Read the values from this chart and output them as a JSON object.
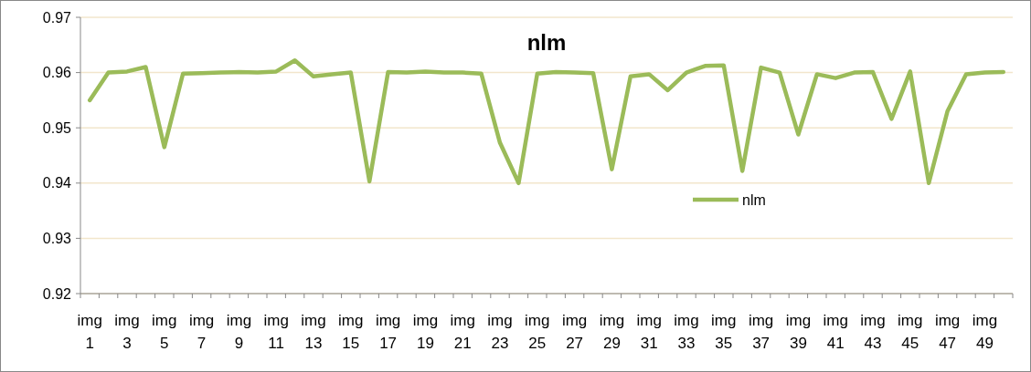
{
  "chart_data": {
    "type": "line",
    "title": "nlm",
    "categories": [
      "img 1",
      null,
      "img 3",
      null,
      "img 5",
      null,
      "img 7",
      null,
      "img 9",
      null,
      "img 11",
      null,
      "img 13",
      null,
      "img 15",
      null,
      "img 17",
      null,
      "img 19",
      null,
      "img 21",
      null,
      "img 23",
      null,
      "img 25",
      null,
      "img 27",
      null,
      "img 29",
      null,
      "img 31",
      null,
      "img 33",
      null,
      "img 35",
      null,
      "img 37",
      null,
      "img 39",
      null,
      "img 41",
      null,
      "img 43",
      null,
      "img 45",
      null,
      "img 47",
      null,
      "img 49",
      null
    ],
    "series": [
      {
        "name": "nlm",
        "color": "#9bbb59",
        "values": [
          0.955,
          0.96,
          0.9602,
          0.961,
          0.9465,
          0.9598,
          0.9599,
          0.96,
          0.9601,
          0.96,
          0.9602,
          0.9622,
          0.9593,
          0.9597,
          0.96,
          0.9403,
          0.9601,
          0.96,
          0.9602,
          0.96,
          0.96,
          0.9598,
          0.9473,
          0.94,
          0.9598,
          0.9601,
          0.96,
          0.9599,
          0.9425,
          0.9593,
          0.9597,
          0.9568,
          0.96,
          0.9612,
          0.9613,
          0.9422,
          0.9609,
          0.96,
          0.9488,
          0.9597,
          0.959,
          0.96,
          0.9601,
          0.9516,
          0.9602,
          0.94,
          0.953,
          0.9597,
          0.96,
          0.9601
        ]
      }
    ],
    "ylim": [
      0.92,
      0.97
    ],
    "yticks": [
      {
        "value": 0.92,
        "label": "0.92"
      },
      {
        "value": 0.93,
        "label": "0.93"
      },
      {
        "value": 0.94,
        "label": "0.94"
      },
      {
        "value": 0.95,
        "label": "0.95"
      },
      {
        "value": 0.96,
        "label": "0.96"
      },
      {
        "value": 0.97,
        "label": "0.97"
      }
    ],
    "grid": "y",
    "legend": "right",
    "marker": "none",
    "line_style": "solid"
  }
}
